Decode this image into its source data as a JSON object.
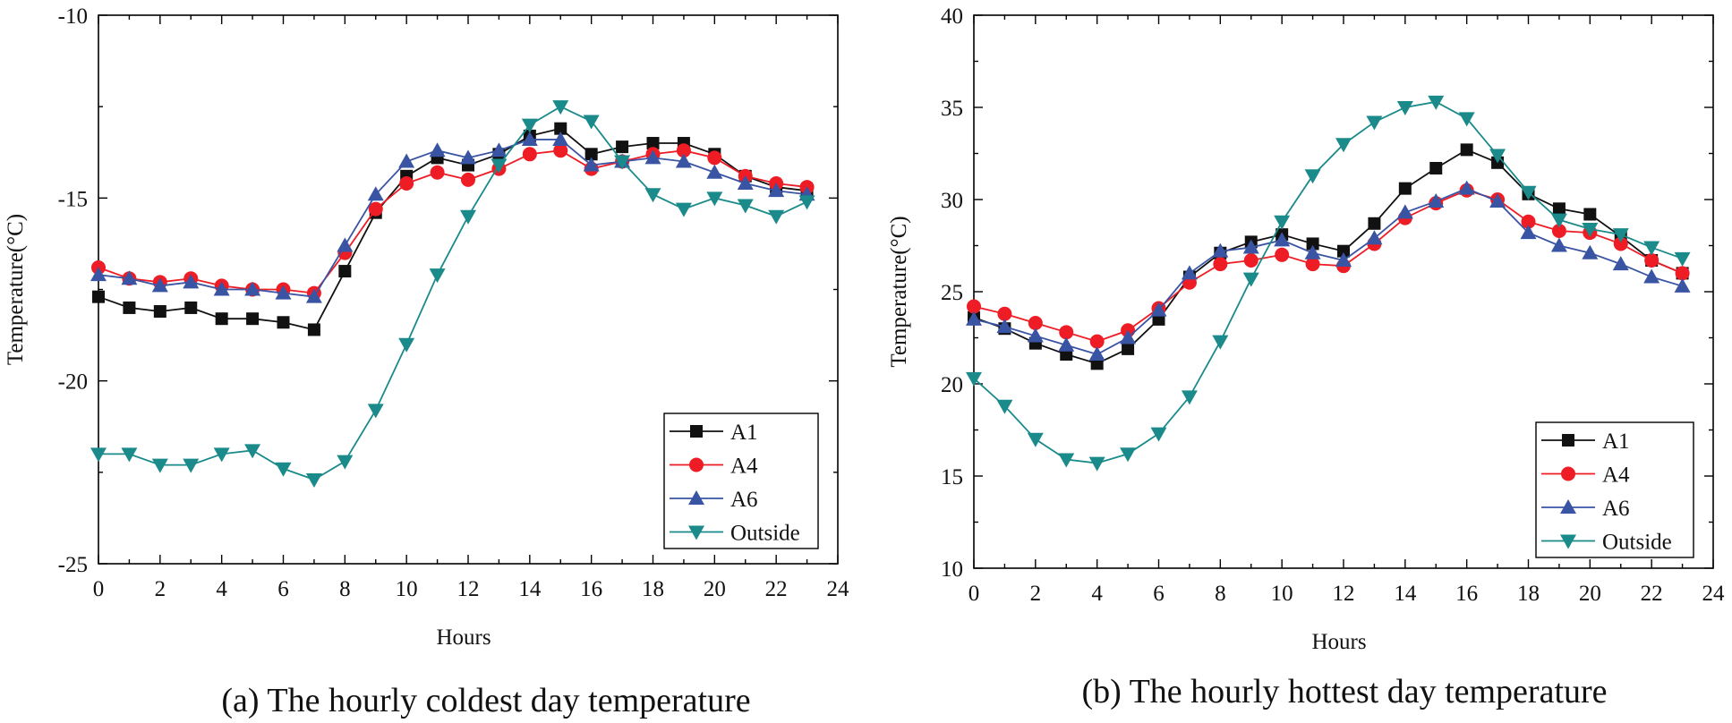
{
  "colors": {
    "A1": "#111111",
    "A4": "#ee1c24",
    "A6": "#3a54a4",
    "Outside": "#1a8a8a"
  },
  "chart_data": [
    {
      "type": "line",
      "caption": "(a) The hourly coldest day temperature",
      "xlabel": "Hours",
      "ylabel": "Temperature(°C)",
      "xlim": [
        0,
        24
      ],
      "ylim": [
        -25,
        -10
      ],
      "xticks": [
        0,
        2,
        4,
        6,
        8,
        10,
        12,
        14,
        16,
        18,
        20,
        22,
        24
      ],
      "yticks": [
        -25,
        -20,
        -15,
        -10
      ],
      "legend_position": "bottom-right",
      "x": [
        0,
        1,
        2,
        3,
        4,
        5,
        6,
        7,
        8,
        9,
        10,
        11,
        12,
        13,
        14,
        15,
        16,
        17,
        18,
        19,
        20,
        21,
        22,
        23
      ],
      "series": [
        {
          "name": "A1",
          "marker": "square",
          "values": [
            -17.7,
            -18.0,
            -18.1,
            -18.0,
            -18.3,
            -18.3,
            -18.4,
            -18.6,
            -17.0,
            -15.4,
            -14.4,
            -13.9,
            -14.1,
            -13.8,
            -13.3,
            -13.1,
            -13.8,
            -13.6,
            -13.5,
            -13.5,
            -13.8,
            -14.4,
            -14.7,
            -14.8
          ]
        },
        {
          "name": "A4",
          "marker": "circle",
          "values": [
            -16.9,
            -17.2,
            -17.3,
            -17.2,
            -17.4,
            -17.5,
            -17.5,
            -17.6,
            -16.5,
            -15.3,
            -14.6,
            -14.3,
            -14.5,
            -14.2,
            -13.8,
            -13.7,
            -14.2,
            -14.0,
            -13.8,
            -13.7,
            -13.9,
            -14.4,
            -14.6,
            -14.7
          ]
        },
        {
          "name": "A6",
          "marker": "triangle-up",
          "values": [
            -17.1,
            -17.2,
            -17.4,
            -17.3,
            -17.5,
            -17.5,
            -17.6,
            -17.7,
            -16.3,
            -14.9,
            -14.0,
            -13.7,
            -13.9,
            -13.7,
            -13.4,
            -13.4,
            -14.1,
            -14.0,
            -13.9,
            -14.0,
            -14.3,
            -14.6,
            -14.8,
            -14.9
          ]
        },
        {
          "name": "Outside",
          "marker": "triangle-down",
          "values": [
            -22.0,
            -22.0,
            -22.3,
            -22.3,
            -22.0,
            -21.9,
            -22.4,
            -22.7,
            -22.2,
            -20.8,
            -19.0,
            -17.1,
            -15.5,
            -14.1,
            -13.0,
            -12.5,
            -12.9,
            -14.0,
            -14.9,
            -15.3,
            -15.0,
            -15.2,
            -15.5,
            -15.1
          ]
        }
      ]
    },
    {
      "type": "line",
      "caption": "(b) The hourly hottest day temperature",
      "xlabel": "Hours",
      "ylabel": "Temperature(°C)",
      "xlim": [
        0,
        24
      ],
      "ylim": [
        10,
        40
      ],
      "xticks": [
        0,
        2,
        4,
        6,
        8,
        10,
        12,
        14,
        16,
        18,
        20,
        22,
        24
      ],
      "yticks": [
        10,
        15,
        20,
        25,
        30,
        35,
        40
      ],
      "legend_position": "bottom-right",
      "x": [
        0,
        1,
        2,
        3,
        4,
        5,
        6,
        7,
        8,
        9,
        10,
        11,
        12,
        13,
        14,
        15,
        16,
        17,
        18,
        19,
        20,
        21,
        22,
        23
      ],
      "series": [
        {
          "name": "A1",
          "marker": "square",
          "values": [
            23.6,
            23.0,
            22.2,
            21.6,
            21.1,
            21.9,
            23.5,
            25.8,
            27.1,
            27.7,
            28.1,
            27.6,
            27.2,
            28.7,
            30.6,
            31.7,
            32.7,
            32.0,
            30.3,
            29.5,
            29.2,
            28.0,
            26.7,
            26.0
          ]
        },
        {
          "name": "A4",
          "marker": "circle",
          "values": [
            24.2,
            23.8,
            23.3,
            22.8,
            22.3,
            22.9,
            24.1,
            25.5,
            26.5,
            26.7,
            27.0,
            26.5,
            26.4,
            27.6,
            29.0,
            29.8,
            30.5,
            30.0,
            28.8,
            28.3,
            28.2,
            27.6,
            26.7,
            26.0
          ]
        },
        {
          "name": "A6",
          "marker": "triangle-up",
          "values": [
            23.5,
            23.1,
            22.6,
            22.1,
            21.6,
            22.5,
            24.0,
            26.0,
            27.2,
            27.4,
            27.8,
            27.1,
            26.7,
            27.9,
            29.3,
            29.9,
            30.6,
            29.9,
            28.2,
            27.5,
            27.1,
            26.5,
            25.8,
            25.3
          ]
        },
        {
          "name": "Outside",
          "marker": "triangle-down",
          "values": [
            20.3,
            18.8,
            17.0,
            15.9,
            15.7,
            16.2,
            17.3,
            19.3,
            22.3,
            25.7,
            28.8,
            31.3,
            33.0,
            34.2,
            35.0,
            35.3,
            34.4,
            32.4,
            30.4,
            28.9,
            28.4,
            28.1,
            27.4,
            26.8
          ]
        }
      ]
    }
  ]
}
